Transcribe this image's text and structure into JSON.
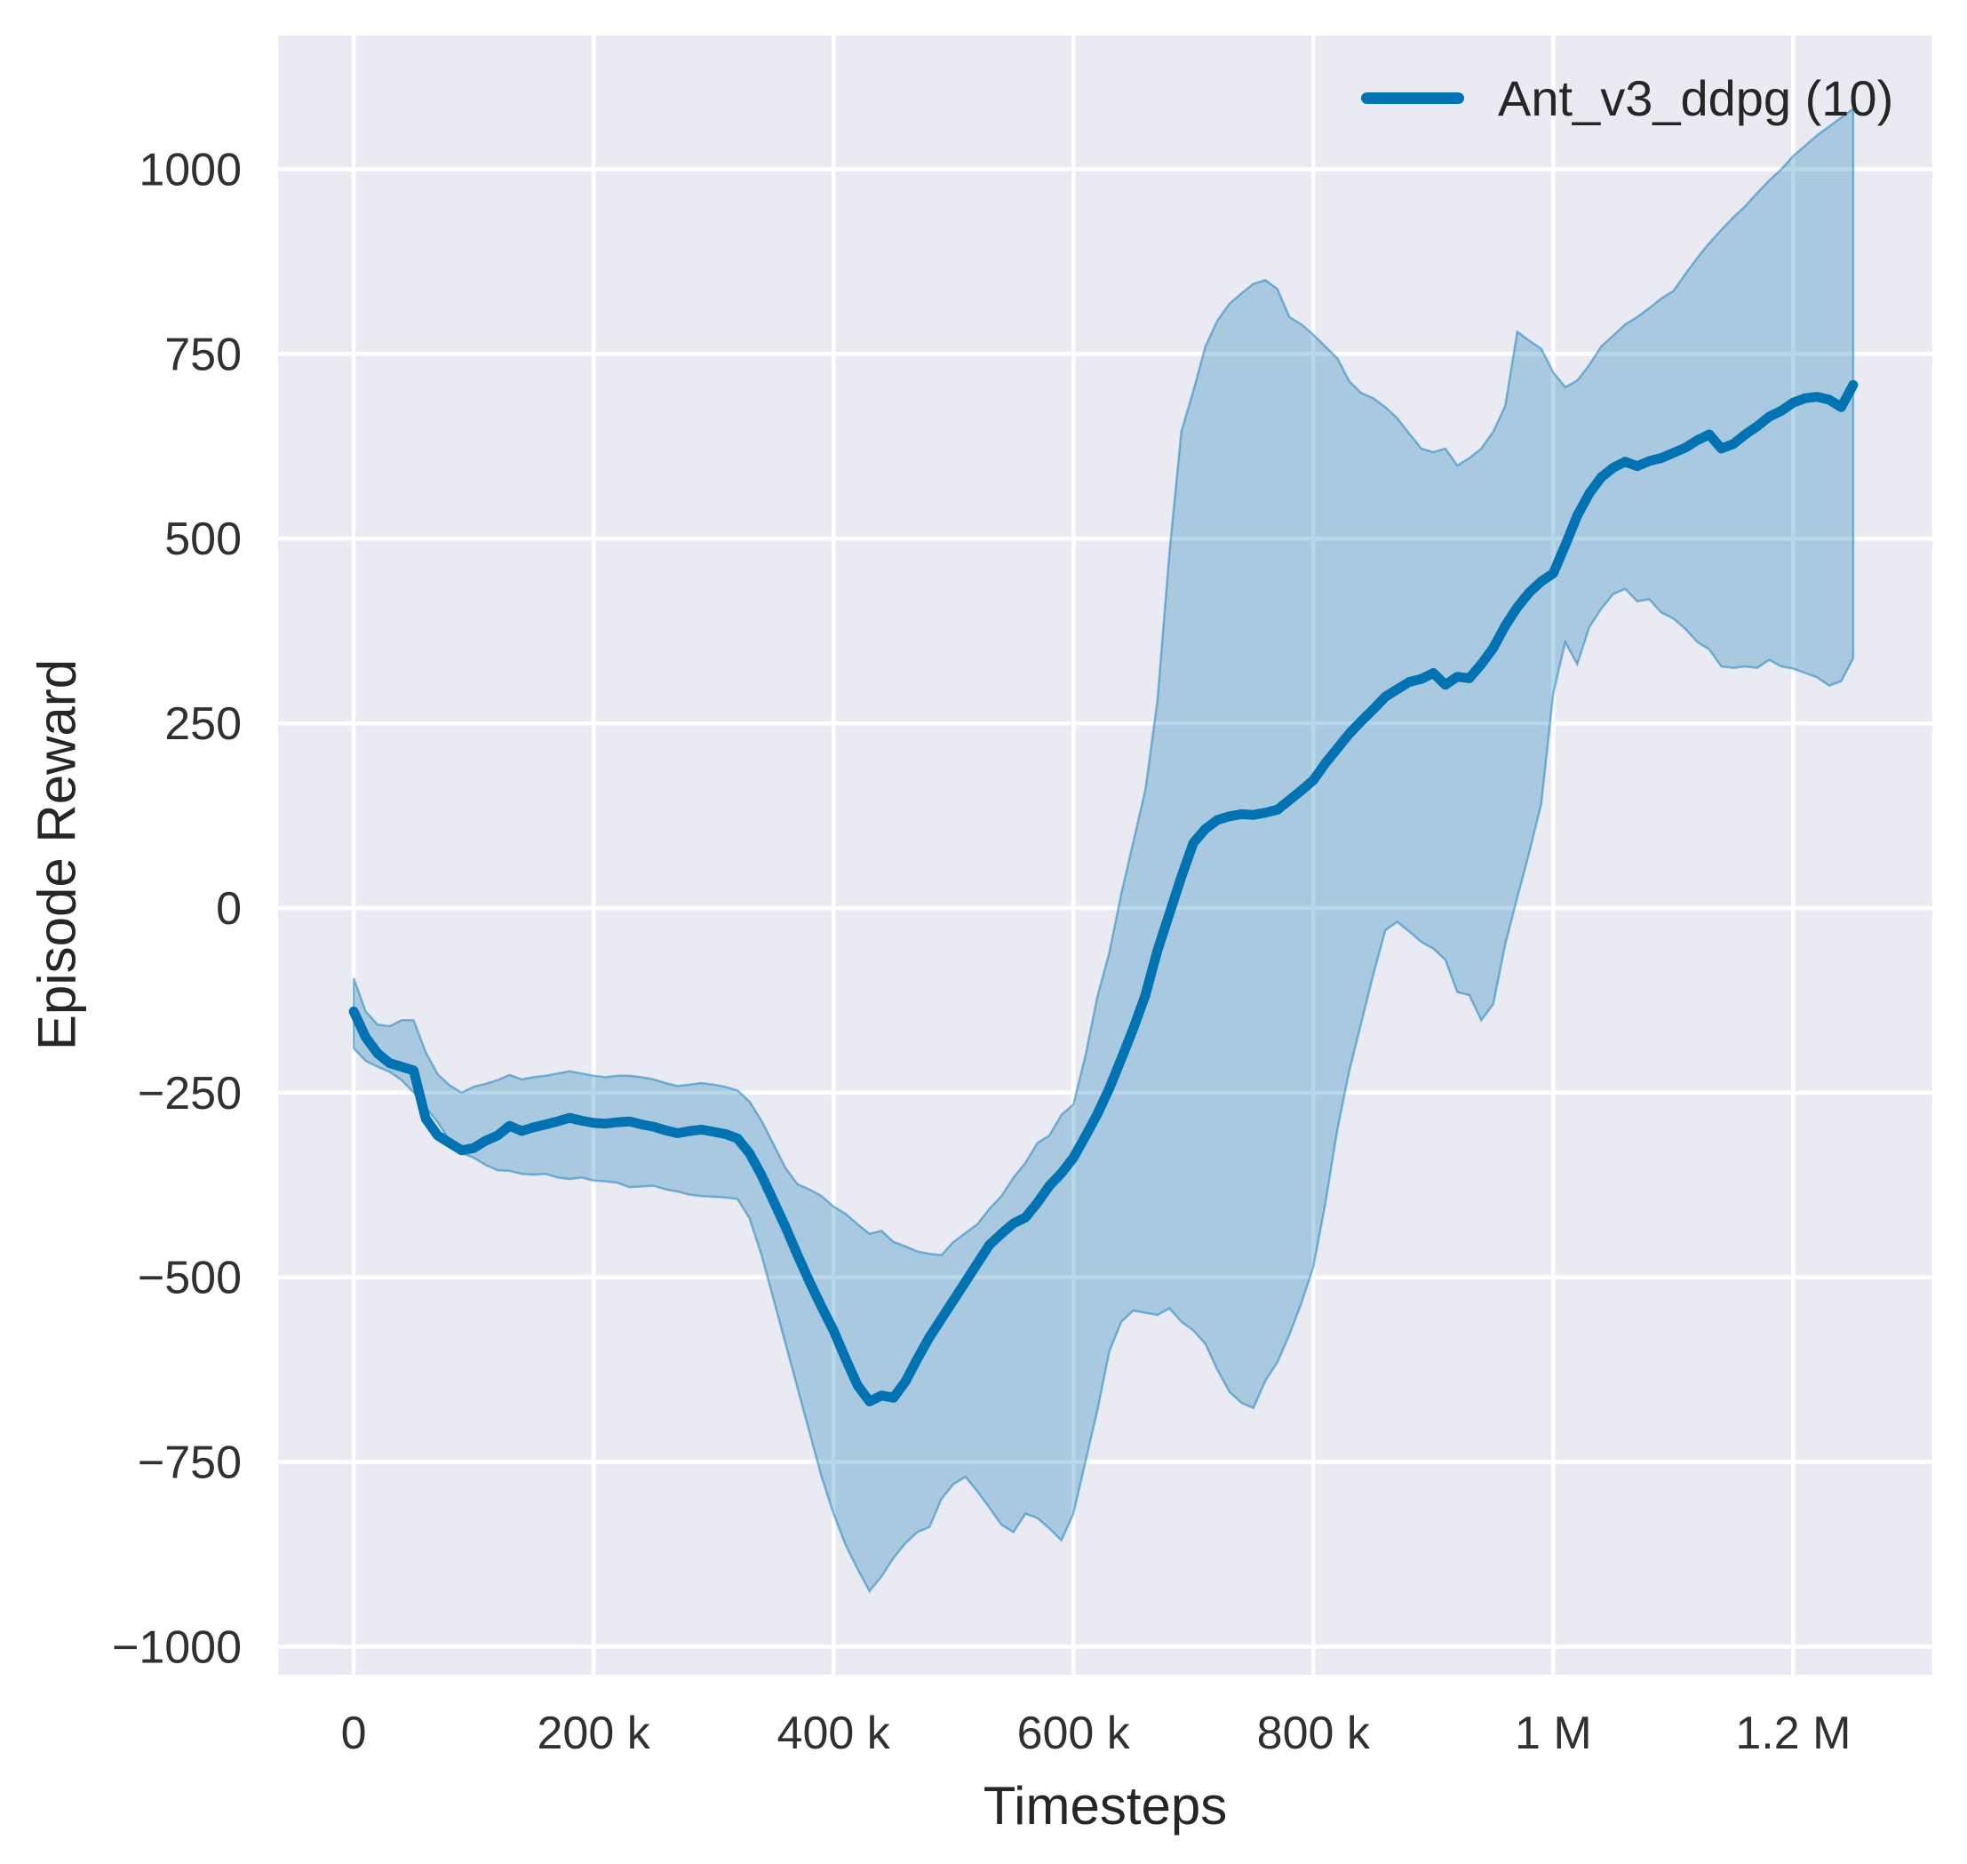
{
  "chart_data": {
    "type": "line",
    "title": "",
    "xlabel": "Timesteps",
    "ylabel": "Episode Reward",
    "legend_position": "upper right",
    "grid": true,
    "xlim_k": [
      -63,
      1316
    ],
    "ylim": [
      -1038,
      1181
    ],
    "x_unit": "timesteps (thousands)",
    "x_start_k": 0,
    "x_step_k": 10,
    "xticks": [
      {
        "v": 0,
        "label": "0"
      },
      {
        "v": 200,
        "label": "200 k"
      },
      {
        "v": 400,
        "label": "400 k"
      },
      {
        "v": 600,
        "label": "600 k"
      },
      {
        "v": 800,
        "label": "800 k"
      },
      {
        "v": 1000,
        "label": "1 M"
      },
      {
        "v": 1200,
        "label": "1.2 M"
      }
    ],
    "yticks": [
      {
        "v": 1000,
        "label": "1000"
      },
      {
        "v": 750,
        "label": "750"
      },
      {
        "v": 500,
        "label": "500"
      },
      {
        "v": 250,
        "label": "250"
      },
      {
        "v": 0,
        "label": "0"
      },
      {
        "v": -250,
        "label": "−250"
      },
      {
        "v": -500,
        "label": "−500"
      },
      {
        "v": -750,
        "label": "−750"
      },
      {
        "v": -1000,
        "label": "−1000"
      }
    ],
    "colors": {
      "line": "#0173b2",
      "band_fill": "rgba(1,115,178,0.28)",
      "band_edge": "rgba(1,115,178,0.45)",
      "plot_bg": "#eaeaf2",
      "gridline": "#ffffff",
      "text": "#262626"
    },
    "series": [
      {
        "name": "Ant_v3_ddpg (10)",
        "mean": [
          -140,
          -175,
          -197,
          -210,
          -215,
          -220,
          -285,
          -308,
          -318,
          -328,
          -325,
          -315,
          -308,
          -295,
          -302,
          -297,
          -293,
          -289,
          -284,
          -288,
          -291,
          -292,
          -290,
          -289,
          -293,
          -296,
          -301,
          -305,
          -302,
          -300,
          -303,
          -306,
          -312,
          -332,
          -362,
          -397,
          -432,
          -470,
          -506,
          -540,
          -572,
          -610,
          -646,
          -668,
          -660,
          -663,
          -641,
          -610,
          -581,
          -556,
          -531,
          -506,
          -481,
          -456,
          -441,
          -427,
          -419,
          -399,
          -376,
          -359,
          -338,
          -309,
          -279,
          -244,
          -204,
          -163,
          -118,
          -58,
          -8,
          42,
          88,
          107,
          119,
          124,
          127,
          126,
          129,
          133,
          146,
          159,
          173,
          196,
          216,
          236,
          253,
          269,
          286,
          296,
          306,
          310,
          318,
          302,
          313,
          311,
          330,
          352,
          382,
          407,
          427,
          442,
          453,
          491,
          531,
          561,
          583,
          596,
          604,
          598,
          605,
          609,
          616,
          623,
          633,
          641,
          622,
          628,
          641,
          652,
          665,
          673,
          684,
          690,
          692,
          688,
          678,
          708
        ],
        "band_hi": [
          -95,
          -140,
          -158,
          -160,
          -152,
          -152,
          -195,
          -225,
          -240,
          -250,
          -242,
          -238,
          -233,
          -226,
          -232,
          -229,
          -227,
          -224,
          -221,
          -224,
          -227,
          -229,
          -227,
          -227,
          -229,
          -232,
          -237,
          -241,
          -239,
          -237,
          -239,
          -242,
          -247,
          -262,
          -288,
          -320,
          -352,
          -374,
          -381,
          -390,
          -404,
          -414,
          -428,
          -441,
          -437,
          -452,
          -458,
          -465,
          -468,
          -470,
          -452,
          -440,
          -428,
          -407,
          -390,
          -365,
          -345,
          -318,
          -308,
          -280,
          -266,
          -200,
          -120,
          -60,
          20,
          90,
          160,
          280,
          480,
          645,
          700,
          760,
          795,
          818,
          832,
          845,
          850,
          838,
          800,
          790,
          776,
          760,
          744,
          713,
          697,
          690,
          678,
          663,
          642,
          622,
          617,
          622,
          599,
          609,
          622,
          645,
          680,
          780,
          768,
          757,
          725,
          705,
          714,
          735,
          760,
          775,
          790,
          800,
          812,
          825,
          835,
          858,
          880,
          900,
          918,
          935,
          950,
          968,
          985,
          1000,
          1018,
          1032,
          1046,
          1058,
          1070,
          1082
        ],
        "band_lo": [
          -190,
          -207,
          -215,
          -222,
          -233,
          -250,
          -270,
          -290,
          -315,
          -332,
          -338,
          -348,
          -355,
          -356,
          -360,
          -361,
          -360,
          -365,
          -367,
          -365,
          -369,
          -370,
          -372,
          -378,
          -377,
          -376,
          -381,
          -384,
          -388,
          -390,
          -391,
          -392,
          -394,
          -420,
          -470,
          -530,
          -590,
          -650,
          -710,
          -770,
          -820,
          -862,
          -895,
          -925,
          -905,
          -880,
          -860,
          -845,
          -838,
          -800,
          -780,
          -770,
          -790,
          -812,
          -835,
          -845,
          -820,
          -826,
          -840,
          -856,
          -820,
          -750,
          -680,
          -600,
          -560,
          -545,
          -548,
          -551,
          -542,
          -560,
          -572,
          -590,
          -625,
          -655,
          -670,
          -677,
          -640,
          -615,
          -578,
          -535,
          -486,
          -400,
          -300,
          -220,
          -155,
          -90,
          -30,
          -19,
          -32,
          -46,
          -55,
          -70,
          -114,
          -118,
          -152,
          -130,
          -49,
          14,
          75,
          141,
          290,
          360,
          330,
          380,
          405,
          425,
          432,
          415,
          418,
          400,
          392,
          378,
          360,
          350,
          327,
          325,
          327,
          325,
          336,
          327,
          324,
          318,
          312,
          301,
          307,
          338
        ]
      }
    ]
  },
  "legend": {
    "label": "Ant_v3_ddpg (10)"
  },
  "axes": {
    "xlabel": "Timesteps",
    "ylabel": "Episode Reward"
  }
}
